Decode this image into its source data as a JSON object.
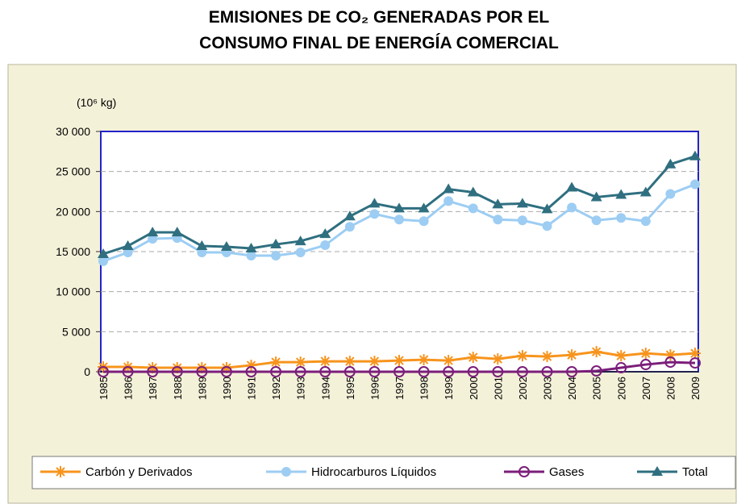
{
  "chart_data": {
    "type": "line",
    "title": [
      "EMISIONES DE CO₂ GENERADAS POR EL",
      "CONSUMO FINAL DE ENERGÍA COMERCIAL"
    ],
    "y_label": "(10⁶ kg)",
    "categories": [
      "1985",
      "1986",
      "1987",
      "1988",
      "1989",
      "1990",
      "1991",
      "1992",
      "1993",
      "1994",
      "1995",
      "1996",
      "1997",
      "1998",
      "1999",
      "2000",
      "2001",
      "2002",
      "2003",
      "2004",
      "2005",
      "2006",
      "2007",
      "2008",
      "2009"
    ],
    "ylim": [
      0,
      30000
    ],
    "yticks": [
      {
        "value": 0,
        "label": "0"
      },
      {
        "value": 5000,
        "label": "5 000"
      },
      {
        "value": 10000,
        "label": "10 000"
      },
      {
        "value": 15000,
        "label": "15 000"
      },
      {
        "value": 20000,
        "label": "20 000"
      },
      {
        "value": 25000,
        "label": "25 000"
      },
      {
        "value": 30000,
        "label": "30 000"
      }
    ],
    "grid": true,
    "legend": "bottom",
    "series": [
      {
        "name": "Carbón y Derivados",
        "color": "#f7941d",
        "marker": "asterisk",
        "values": [
          600,
          600,
          500,
          500,
          500,
          500,
          800,
          1200,
          1200,
          1300,
          1300,
          1300,
          1400,
          1500,
          1400,
          1800,
          1600,
          2000,
          1900,
          2100,
          2500,
          2000,
          2300,
          2100,
          2300
        ]
      },
      {
        "name": "Hidrocarburos Líquidos",
        "color": "#9dcdf3",
        "marker": "circle",
        "values": [
          13800,
          14900,
          16600,
          16700,
          14900,
          14900,
          14500,
          14500,
          14900,
          15800,
          18100,
          19700,
          19000,
          18800,
          21300,
          20400,
          19000,
          18900,
          18200,
          20500,
          18900,
          19200,
          18800,
          22200,
          23400
        ]
      },
      {
        "name": "Gases",
        "color": "#7b1e7a",
        "marker": "circle-open",
        "values": [
          0,
          0,
          0,
          0,
          0,
          0,
          0,
          0,
          0,
          0,
          0,
          0,
          0,
          0,
          0,
          0,
          0,
          0,
          0,
          0,
          100,
          500,
          900,
          1200,
          1100
        ]
      },
      {
        "name": "Total",
        "color": "#2f6f80",
        "marker": "triangle",
        "values": [
          14700,
          15700,
          17400,
          17400,
          15700,
          15600,
          15400,
          15900,
          16300,
          17200,
          19400,
          21000,
          20400,
          20400,
          22800,
          22400,
          20900,
          21000,
          20300,
          23000,
          21800,
          22100,
          22400,
          25900,
          26900
        ]
      }
    ]
  }
}
